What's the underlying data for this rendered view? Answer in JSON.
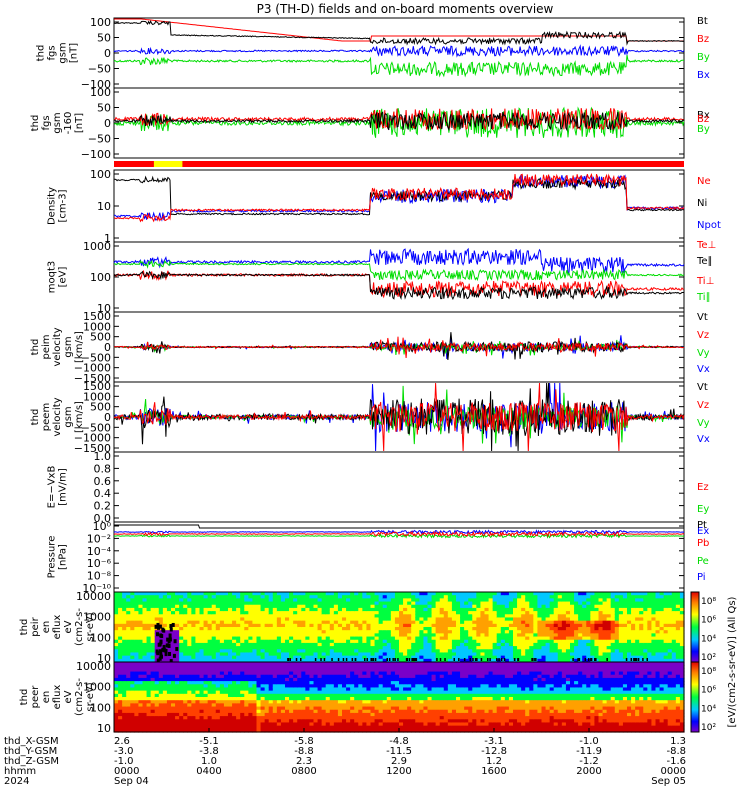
{
  "title": "P3 (TH-D) fields and on-board moments overview",
  "colors": {
    "black": "#000000",
    "red": "#ff0000",
    "green": "#00dd00",
    "blue": "#0000ff",
    "sep_bar": "#ff0000",
    "sep_bar_hi": "#ffff00"
  },
  "chart_data": [
    {
      "type": "line",
      "ylabel": [
        "thd",
        "fgs",
        "gsm",
        "[nT]"
      ],
      "yticks": [
        "100",
        "50",
        "0",
        "−50",
        "−100"
      ],
      "ylim": [
        -100,
        100
      ],
      "legend": [
        {
          "name": "Bt",
          "color": "#000000"
        },
        {
          "name": "Bz",
          "color": "#ff0000"
        },
        {
          "name": "By",
          "color": "#00dd00"
        },
        {
          "name": "Bx",
          "color": "#0000ff"
        }
      ]
    },
    {
      "type": "line",
      "ylabel": [
        "thd",
        "fgs",
        "gsm",
        "-160",
        "[nT]"
      ],
      "yticks": [
        "100",
        "50",
        "0",
        "−50",
        "−100"
      ],
      "ylim": [
        -120,
        110
      ],
      "legend": [
        {
          "name": "Bx",
          "color": "#000000"
        },
        {
          "name": "Bz",
          "color": "#ff0000"
        },
        {
          "name": "By",
          "color": "#00dd00"
        }
      ]
    },
    {
      "type": "line",
      "ylabel": [
        "Density",
        "[cm-3]"
      ],
      "yticks": [
        "100",
        "10",
        "1"
      ],
      "scale": "log",
      "legend": [
        {
          "name": "Ne",
          "color": "#ff0000"
        },
        {
          "name": "Ni",
          "color": "#000000"
        },
        {
          "name": "Npot",
          "color": "#0000ff"
        }
      ]
    },
    {
      "type": "line",
      "ylabel": [
        "moqt3",
        "[eV]"
      ],
      "yticks": [
        "1000",
        "100",
        "10"
      ],
      "scale": "log",
      "legend": [
        {
          "name": "Te⊥",
          "color": "#ff0000"
        },
        {
          "name": "Te∥",
          "color": "#000000"
        },
        {
          "name": "Ti⊥",
          "color": "#ff0000"
        },
        {
          "name": "Ti∥",
          "color": "#00dd00"
        }
      ]
    },
    {
      "type": "line",
      "ylabel": [
        "thd",
        "peim",
        "velocity",
        "gsm",
        "[km/s]"
      ],
      "yticks": [
        "1500",
        "1000",
        "500",
        "0",
        "−500",
        "−1000",
        "−1500"
      ],
      "ylim": [
        -1500,
        1500
      ],
      "legend": [
        {
          "name": "Vt",
          "color": "#000000"
        },
        {
          "name": "Vz",
          "color": "#ff0000"
        },
        {
          "name": "Vy",
          "color": "#00dd00"
        },
        {
          "name": "Vx",
          "color": "#0000ff"
        }
      ]
    },
    {
      "type": "line",
      "ylabel": [
        "thd",
        "peem",
        "velocity",
        "gsm",
        "[km/s]"
      ],
      "yticks": [
        "1500",
        "1000",
        "500",
        "0",
        "−500",
        "−1000",
        "−1500"
      ],
      "ylim": [
        -1500,
        1500
      ],
      "legend": [
        {
          "name": "Vt",
          "color": "#000000"
        },
        {
          "name": "Vz",
          "color": "#ff0000"
        },
        {
          "name": "Vy",
          "color": "#00dd00"
        },
        {
          "name": "Vx",
          "color": "#0000ff"
        }
      ]
    },
    {
      "type": "line",
      "ylabel": [
        "E=−VxB",
        "[mV/m]"
      ],
      "yticks": [
        "1.0",
        "0.8",
        "0.6",
        "0.4",
        "0.2",
        "0.0"
      ],
      "ylim": [
        0,
        1
      ],
      "legend": [
        {
          "name": "Ez",
          "color": "#ff0000"
        },
        {
          "name": "Ey",
          "color": "#00dd00"
        },
        {
          "name": "Ex",
          "color": "#0000ff"
        }
      ]
    },
    {
      "type": "line",
      "ylabel": [
        "Pressure",
        "[nPa]"
      ],
      "yticks": [
        "10⁰",
        "10⁻²",
        "10⁻⁴",
        "10⁻⁶",
        "10⁻⁸",
        "10⁻¹⁰"
      ],
      "scale": "log",
      "legend": [
        {
          "name": "Pt",
          "color": "#000000"
        },
        {
          "name": "Pb",
          "color": "#ff0000"
        },
        {
          "name": "Pe",
          "color": "#00dd00"
        },
        {
          "name": "Pi",
          "color": "#0000ff"
        }
      ]
    },
    {
      "type": "heatmap",
      "ylabel": [
        "thd",
        "peir",
        "en",
        "eflux",
        "eV",
        "(cm2-s-",
        "sr-eV)"
      ],
      "yticks": [
        "10000",
        "1000",
        "100",
        "10"
      ],
      "scale": "log"
    },
    {
      "type": "heatmap",
      "ylabel": [
        "thd",
        "peer",
        "en",
        "eflux",
        "eV",
        "(cm2-s-",
        "sr-eV)"
      ],
      "yticks": [
        "10000",
        "1000",
        "100",
        "10"
      ],
      "scale": "log"
    }
  ],
  "colorbar": {
    "ticks": [
      "10⁸",
      "10⁶",
      "10⁴",
      "10²"
    ],
    "label": "[eV/(cm2-s-sr-eV)] (All Qs)"
  },
  "x_axis": {
    "row_labels": [
      "thd_X-GSM",
      "thd_Y-GSM",
      "thd_Z-GSM",
      "hhmm",
      "2024"
    ],
    "ticks": [
      {
        "x": [
          "2.6",
          "-3.0",
          "-1.0"
        ],
        "hhmm": "0000",
        "date": "Sep 04"
      },
      {
        "x": [
          "-5.1",
          "-3.8",
          "1.0"
        ],
        "hhmm": "0400",
        "date": ""
      },
      {
        "x": [
          "-5.8",
          "-8.8",
          "2.3"
        ],
        "hhmm": "0800",
        "date": ""
      },
      {
        "x": [
          "-4.8",
          "-11.5",
          "2.9"
        ],
        "hhmm": "1200",
        "date": ""
      },
      {
        "x": [
          "-3.1",
          "-12.8",
          "1.2"
        ],
        "hhmm": "1600",
        "date": ""
      },
      {
        "x": [
          "-1.0",
          "-11.9",
          "-1.2"
        ],
        "hhmm": "2000",
        "date": ""
      },
      {
        "x": [
          "1.3",
          "-8.8",
          "-1.6"
        ],
        "hhmm": "0000",
        "date": "Sep 05"
      }
    ]
  }
}
